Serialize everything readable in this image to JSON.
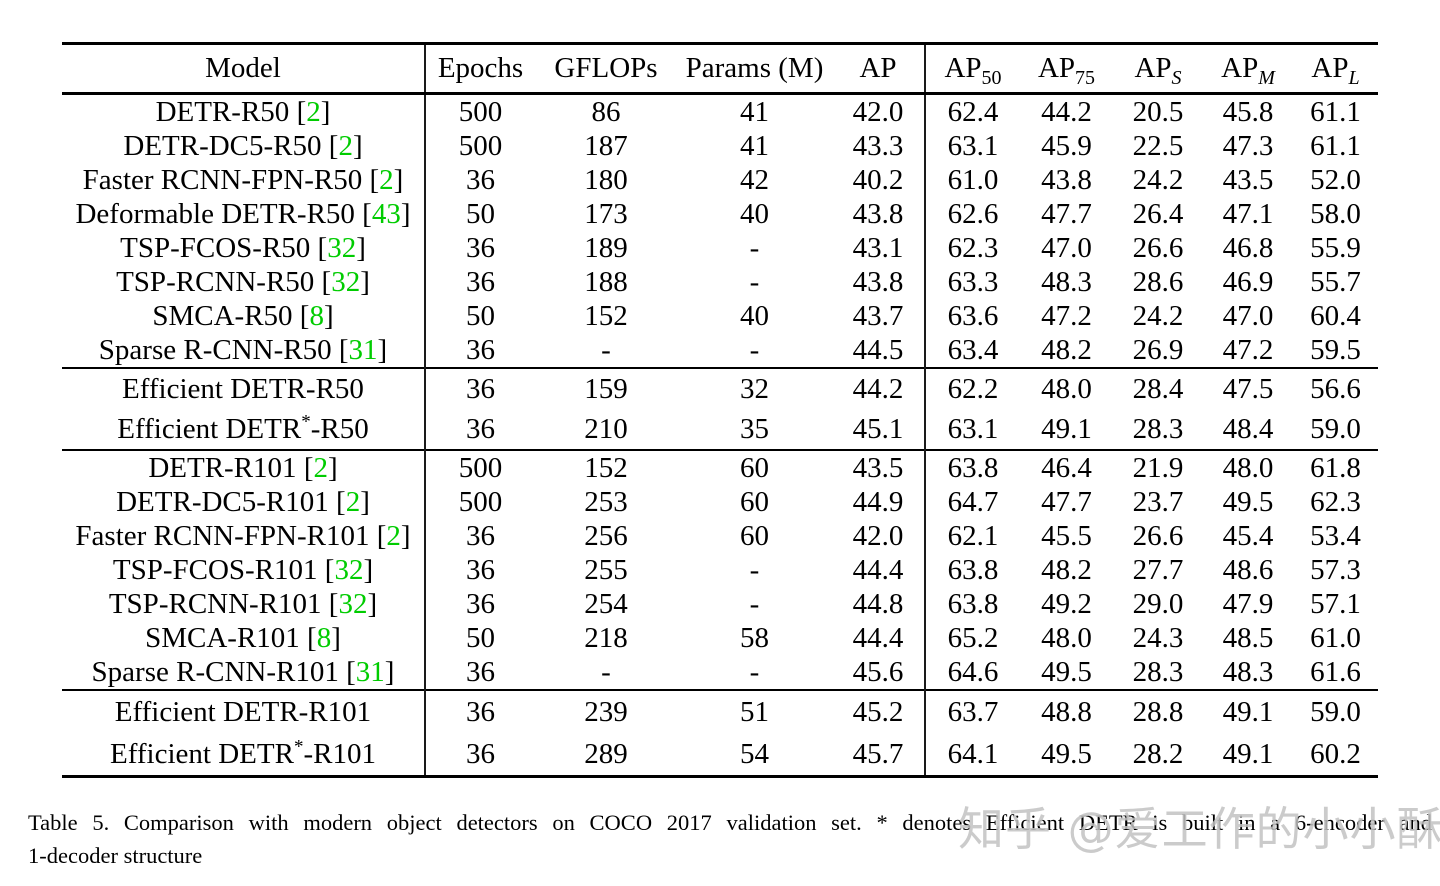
{
  "page": {
    "background": "#ffffff",
    "text_color": "#000000",
    "citation_green": "#00cc00",
    "watermark_color": "#c2c2c2"
  },
  "table": {
    "columns": [
      {
        "key": "model",
        "base": "Model",
        "sub": "",
        "sub_italic": false
      },
      {
        "key": "epochs",
        "base": "Epochs",
        "sub": "",
        "sub_italic": false
      },
      {
        "key": "gflops",
        "base": "GFLOPs",
        "sub": "",
        "sub_italic": false
      },
      {
        "key": "params",
        "base": "Params (M)",
        "sub": "",
        "sub_italic": false
      },
      {
        "key": "ap",
        "base": "AP",
        "sub": "",
        "sub_italic": false
      },
      {
        "key": "ap50",
        "base": "AP",
        "sub": "50",
        "sub_italic": false
      },
      {
        "key": "ap75",
        "base": "AP",
        "sub": "75",
        "sub_italic": false
      },
      {
        "key": "aps",
        "base": "AP",
        "sub": "S",
        "sub_italic": true
      },
      {
        "key": "apm",
        "base": "AP",
        "sub": "M",
        "sub_italic": true
      },
      {
        "key": "apl",
        "base": "AP",
        "sub": "L",
        "sub_italic": true
      }
    ],
    "sections": [
      {
        "rows": [
          {
            "model": "DETR-R50",
            "ref": "2",
            "epochs": "500",
            "gflops": "86",
            "params": "41",
            "ap": "42.0",
            "ap50": "62.4",
            "ap75": "44.2",
            "aps": "20.5",
            "apm": "45.8",
            "apl": "61.1",
            "bold": [
              "apl"
            ]
          },
          {
            "model": "DETR-DC5-R50",
            "ref": "2",
            "epochs": "500",
            "gflops": "187",
            "params": "41",
            "ap": "43.3",
            "ap50": "63.1",
            "ap75": "45.9",
            "aps": "22.5",
            "apm": "47.3",
            "apl": "61.1",
            "bold": []
          },
          {
            "model": "Faster RCNN-FPN-R50",
            "ref": "2",
            "epochs": "36",
            "gflops": "180",
            "params": "42",
            "ap": "40.2",
            "ap50": "61.0",
            "ap75": "43.8",
            "aps": "24.2",
            "apm": "43.5",
            "apl": "52.0",
            "bold": []
          },
          {
            "model": "Deformable DETR-R50",
            "ref": "43",
            "epochs": "50",
            "gflops": "173",
            "params": "40",
            "ap": "43.8",
            "ap50": "62.6",
            "ap75": "47.7",
            "aps": "26.4",
            "apm": "47.1",
            "apl": "58.0",
            "bold": []
          },
          {
            "model": "TSP-FCOS-R50",
            "ref": "32",
            "epochs": "36",
            "gflops": "189",
            "params": "-",
            "ap": "43.1",
            "ap50": "62.3",
            "ap75": "47.0",
            "aps": "26.6",
            "apm": "46.8",
            "apl": "55.9",
            "bold": []
          },
          {
            "model": "TSP-RCNN-R50",
            "ref": "32",
            "epochs": "36",
            "gflops": "188",
            "params": "-",
            "ap": "43.8",
            "ap50": "63.3",
            "ap75": "48.3",
            "aps": "28.6",
            "apm": "46.9",
            "apl": "55.7",
            "bold": [
              "aps"
            ]
          },
          {
            "model": "SMCA-R50",
            "ref": "8",
            "epochs": "50",
            "gflops": "152",
            "params": "40",
            "ap": "43.7",
            "ap50": "63.6",
            "ap75": "47.2",
            "aps": "24.2",
            "apm": "47.0",
            "apl": "60.4",
            "bold": [
              "ap50"
            ]
          },
          {
            "model": "Sparse R-CNN-R50",
            "ref": "31",
            "epochs": "36",
            "gflops": "-",
            "params": "-",
            "ap": "44.5",
            "ap50": "63.4",
            "ap75": "48.2",
            "aps": "26.9",
            "apm": "47.2",
            "apl": "59.5",
            "bold": []
          }
        ]
      },
      {
        "rows": [
          {
            "model": "Efficient DETR-R50",
            "ref": "",
            "epochs": "36",
            "gflops": "159",
            "params": "32",
            "ap": "44.2",
            "ap50": "62.2",
            "ap75": "48.0",
            "aps": "28.4",
            "apm": "47.5",
            "apl": "56.6",
            "bold": []
          },
          {
            "model": "Efficient DETR*-R50",
            "ref": "",
            "epochs": "36",
            "gflops": "210",
            "params": "35",
            "ap": "45.1",
            "ap50": "63.1",
            "ap75": "49.1",
            "aps": "28.3",
            "apm": "48.4",
            "apl": "59.0",
            "bold": [
              "ap",
              "ap75",
              "apm"
            ]
          }
        ]
      },
      {
        "rows": [
          {
            "model": "DETR-R101",
            "ref": "2",
            "epochs": "500",
            "gflops": "152",
            "params": "60",
            "ap": "43.5",
            "ap50": "63.8",
            "ap75": "46.4",
            "aps": "21.9",
            "apm": "48.0",
            "apl": "61.8",
            "bold": []
          },
          {
            "model": "DETR-DC5-R101",
            "ref": "2",
            "epochs": "500",
            "gflops": "253",
            "params": "60",
            "ap": "44.9",
            "ap50": "64.7",
            "ap75": "47.7",
            "aps": "23.7",
            "apm": "49.5",
            "apl": "62.3",
            "bold": [
              "apm",
              "apl"
            ]
          },
          {
            "model": "Faster RCNN-FPN-R101",
            "ref": "2",
            "epochs": "36",
            "gflops": "256",
            "params": "60",
            "ap": "42.0",
            "ap50": "62.1",
            "ap75": "45.5",
            "aps": "26.6",
            "apm": "45.4",
            "apl": "53.4",
            "bold": []
          },
          {
            "model": "TSP-FCOS-R101",
            "ref": "32",
            "epochs": "36",
            "gflops": "255",
            "params": "-",
            "ap": "44.4",
            "ap50": "63.8",
            "ap75": "48.2",
            "aps": "27.7",
            "apm": "48.6",
            "apl": "57.3",
            "bold": []
          },
          {
            "model": "TSP-RCNN-R101",
            "ref": "32",
            "epochs": "36",
            "gflops": "254",
            "params": "-",
            "ap": "44.8",
            "ap50": "63.8",
            "ap75": "49.2",
            "aps": "29.0",
            "apm": "47.9",
            "apl": "57.1",
            "bold": [
              "aps"
            ]
          },
          {
            "model": "SMCA-R101",
            "ref": "8",
            "epochs": "50",
            "gflops": "218",
            "params": "58",
            "ap": "44.4",
            "ap50": "65.2",
            "ap75": "48.0",
            "aps": "24.3",
            "apm": "48.5",
            "apl": "61.0",
            "bold": [
              "ap50"
            ]
          },
          {
            "model": "Sparse R-CNN-R101",
            "ref": "31",
            "epochs": "36",
            "gflops": "-",
            "params": "-",
            "ap": "45.6",
            "ap50": "64.6",
            "ap75": "49.5",
            "aps": "28.3",
            "apm": "48.3",
            "apl": "61.6",
            "bold": [
              "ap75"
            ]
          }
        ]
      },
      {
        "rows": [
          {
            "model": "Efficient DETR-R101",
            "ref": "",
            "epochs": "36",
            "gflops": "239",
            "params": "51",
            "ap": "45.2",
            "ap50": "63.7",
            "ap75": "48.8",
            "aps": "28.8",
            "apm": "49.1",
            "apl": "59.0",
            "bold": []
          },
          {
            "model": "Efficient DETR*-R101",
            "ref": "",
            "epochs": "36",
            "gflops": "289",
            "params": "54",
            "ap": "45.7",
            "ap50": "64.1",
            "ap75": "49.5",
            "aps": "28.2",
            "apm": "49.1",
            "apl": "60.2",
            "bold": [
              "ap"
            ]
          }
        ]
      }
    ]
  },
  "caption": {
    "line1": "Table 5. Comparison with modern object detectors on COCO 2017 validation set.  * denotes Efficient DETR is built in a 6-encoder and",
    "line2": "1-decoder structure"
  },
  "watermark": {
    "text": "知乎 @爱工作的小小酥"
  }
}
